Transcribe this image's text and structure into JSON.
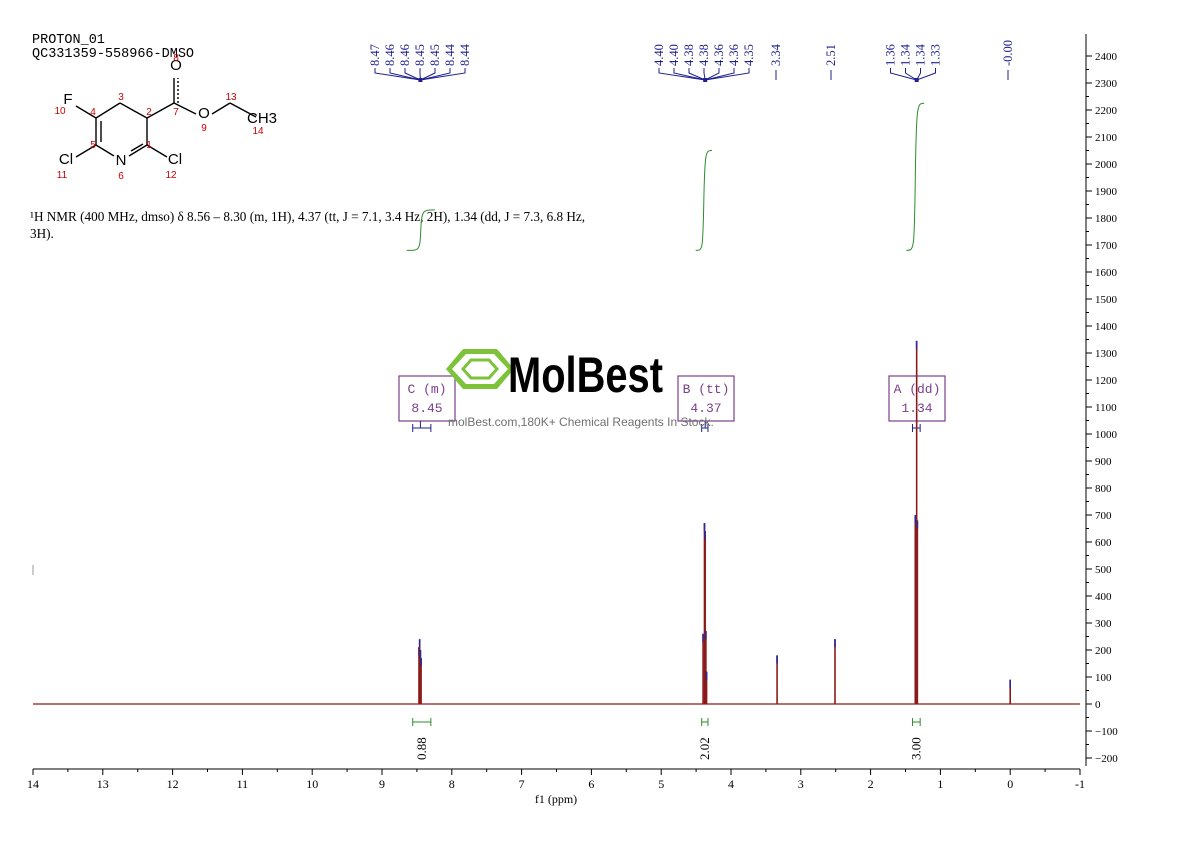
{
  "header": {
    "line1": "PROTON_01",
    "line2": "QC331359-558966-DMSO"
  },
  "nmr_summary": "¹H NMR (400 MHz, dmso) δ 8.56 – 8.30 (m, 1H), 4.37 (tt, J = 7.1, 3.4 Hz, 2H), 1.34 (dd, J = 7.3, 6.8 Hz, 3H).",
  "molecule": {
    "atoms": [
      {
        "symbol": "F",
        "number": "10"
      },
      {
        "symbol": "",
        "number": "4"
      },
      {
        "symbol": "",
        "number": "3"
      },
      {
        "symbol": "",
        "number": "2"
      },
      {
        "symbol": "",
        "number": "7"
      },
      {
        "symbol": "O",
        "number": "8"
      },
      {
        "symbol": "O",
        "number": "9"
      },
      {
        "symbol": "",
        "number": "13"
      },
      {
        "symbol": "CH3",
        "number": "14"
      },
      {
        "symbol": "",
        "number": "5"
      },
      {
        "symbol": "N",
        "number": "6"
      },
      {
        "symbol": "",
        "number": "1"
      },
      {
        "symbol": "Cl",
        "number": "11"
      },
      {
        "symbol": "Cl",
        "number": "12"
      }
    ]
  },
  "watermark": {
    "brand": "MolBest",
    "tagline": "molBest.com,180K+ Chemical Reagents In Stock."
  },
  "colors": {
    "peak_label_line": "#1f1f8f",
    "spectrum": "#8b1a1a",
    "spectrum_blue": "#2a2a9a",
    "integral": "#2e8b2e",
    "multiplet_box": "#7b3f8c",
    "logo_green": "#7cc33a",
    "atom_number": "#cc0000"
  },
  "chart_data": {
    "type": "line",
    "xlabel": "f1 (ppm)",
    "ylabel": "",
    "xlim": [
      14,
      -1
    ],
    "ylim": [
      -200,
      2400
    ],
    "x_ticks": [
      14,
      13,
      12,
      11,
      10,
      9,
      8,
      7,
      6,
      5,
      4,
      3,
      2,
      1,
      0,
      -1
    ],
    "x_tick_labels": [
      "14",
      "13",
      "12",
      "11",
      "10",
      "9",
      "8",
      "7",
      "6",
      "5",
      "4",
      "3",
      "2",
      "1",
      "0",
      "-1"
    ],
    "y_ticks": [
      2400,
      2300,
      2200,
      2100,
      2000,
      1900,
      1800,
      1700,
      1600,
      1500,
      1400,
      1300,
      1200,
      1100,
      1000,
      900,
      800,
      700,
      600,
      500,
      400,
      300,
      200,
      100,
      0,
      -100,
      -200
    ],
    "y_tick_labels": [
      "2400",
      "2300",
      "2200",
      "2100",
      "2000",
      "1900",
      "1800",
      "1700",
      "1600",
      "1500",
      "1400",
      "1300",
      "1200",
      "1100",
      "1000",
      "900",
      "800",
      "700",
      "600",
      "500",
      "400",
      "300",
      "200",
      "100",
      "0",
      "−100",
      "−200"
    ],
    "grid": false,
    "peaks": [
      {
        "ppm": 8.47,
        "height": 210
      },
      {
        "ppm": 8.46,
        "height": 240
      },
      {
        "ppm": 8.45,
        "height": 200
      },
      {
        "ppm": 8.44,
        "height": 170
      },
      {
        "ppm": 4.4,
        "height": 260
      },
      {
        "ppm": 4.38,
        "height": 670
      },
      {
        "ppm": 4.37,
        "height": 640
      },
      {
        "ppm": 4.36,
        "height": 270
      },
      {
        "ppm": 4.35,
        "height": 120
      },
      {
        "ppm": 3.34,
        "height": 180
      },
      {
        "ppm": 2.51,
        "height": 240
      },
      {
        "ppm": 1.36,
        "height": 700
      },
      {
        "ppm": 1.34,
        "height": 1345
      },
      {
        "ppm": 1.33,
        "height": 680
      },
      {
        "ppm": 0.0,
        "height": 90
      }
    ],
    "peak_labels": [
      {
        "group": "8.4",
        "anchor_ppm": 8.45,
        "labels": [
          "8.47",
          "8.46",
          "8.46",
          "8.45",
          "8.45",
          "8.44",
          "8.44"
        ]
      },
      {
        "group": "4.3",
        "anchor_ppm": 4.37,
        "labels": [
          "4.40",
          "4.40",
          "4.38",
          "4.38",
          "4.36",
          "4.36",
          "4.35"
        ]
      },
      {
        "group": "3.34",
        "anchor_ppm": 3.34,
        "labels": [
          "3.34"
        ]
      },
      {
        "group": "2.51",
        "anchor_ppm": 2.51,
        "labels": [
          "2.51"
        ]
      },
      {
        "group": "1.3",
        "anchor_ppm": 1.34,
        "labels": [
          "1.36",
          "1.34",
          "1.34",
          "1.33"
        ]
      },
      {
        "group": "0",
        "anchor_ppm": 0.0,
        "labels": [
          "-0.00"
        ]
      }
    ],
    "multiplets": [
      {
        "letter": "C",
        "mult": "(m)",
        "shift": "8.45",
        "ppm": 8.45,
        "from": 8.56,
        "to": 8.3
      },
      {
        "letter": "B",
        "mult": "(tt)",
        "shift": "4.37",
        "ppm": 4.37,
        "from": 4.42,
        "to": 4.33
      },
      {
        "letter": "A",
        "mult": "(dd)",
        "shift": "1.34",
        "ppm": 1.34,
        "from": 1.4,
        "to": 1.29
      }
    ],
    "integrals": [
      {
        "value": "0.88",
        "from": 8.56,
        "to": 8.3,
        "curve_start": 1680,
        "curve_end": 1830
      },
      {
        "value": "2.02",
        "from": 4.42,
        "to": 4.33,
        "curve_start": 1680,
        "curve_end": 2050
      },
      {
        "value": "3.00",
        "from": 1.4,
        "to": 1.29,
        "curve_start": 1680,
        "curve_end": 2225
      }
    ]
  }
}
